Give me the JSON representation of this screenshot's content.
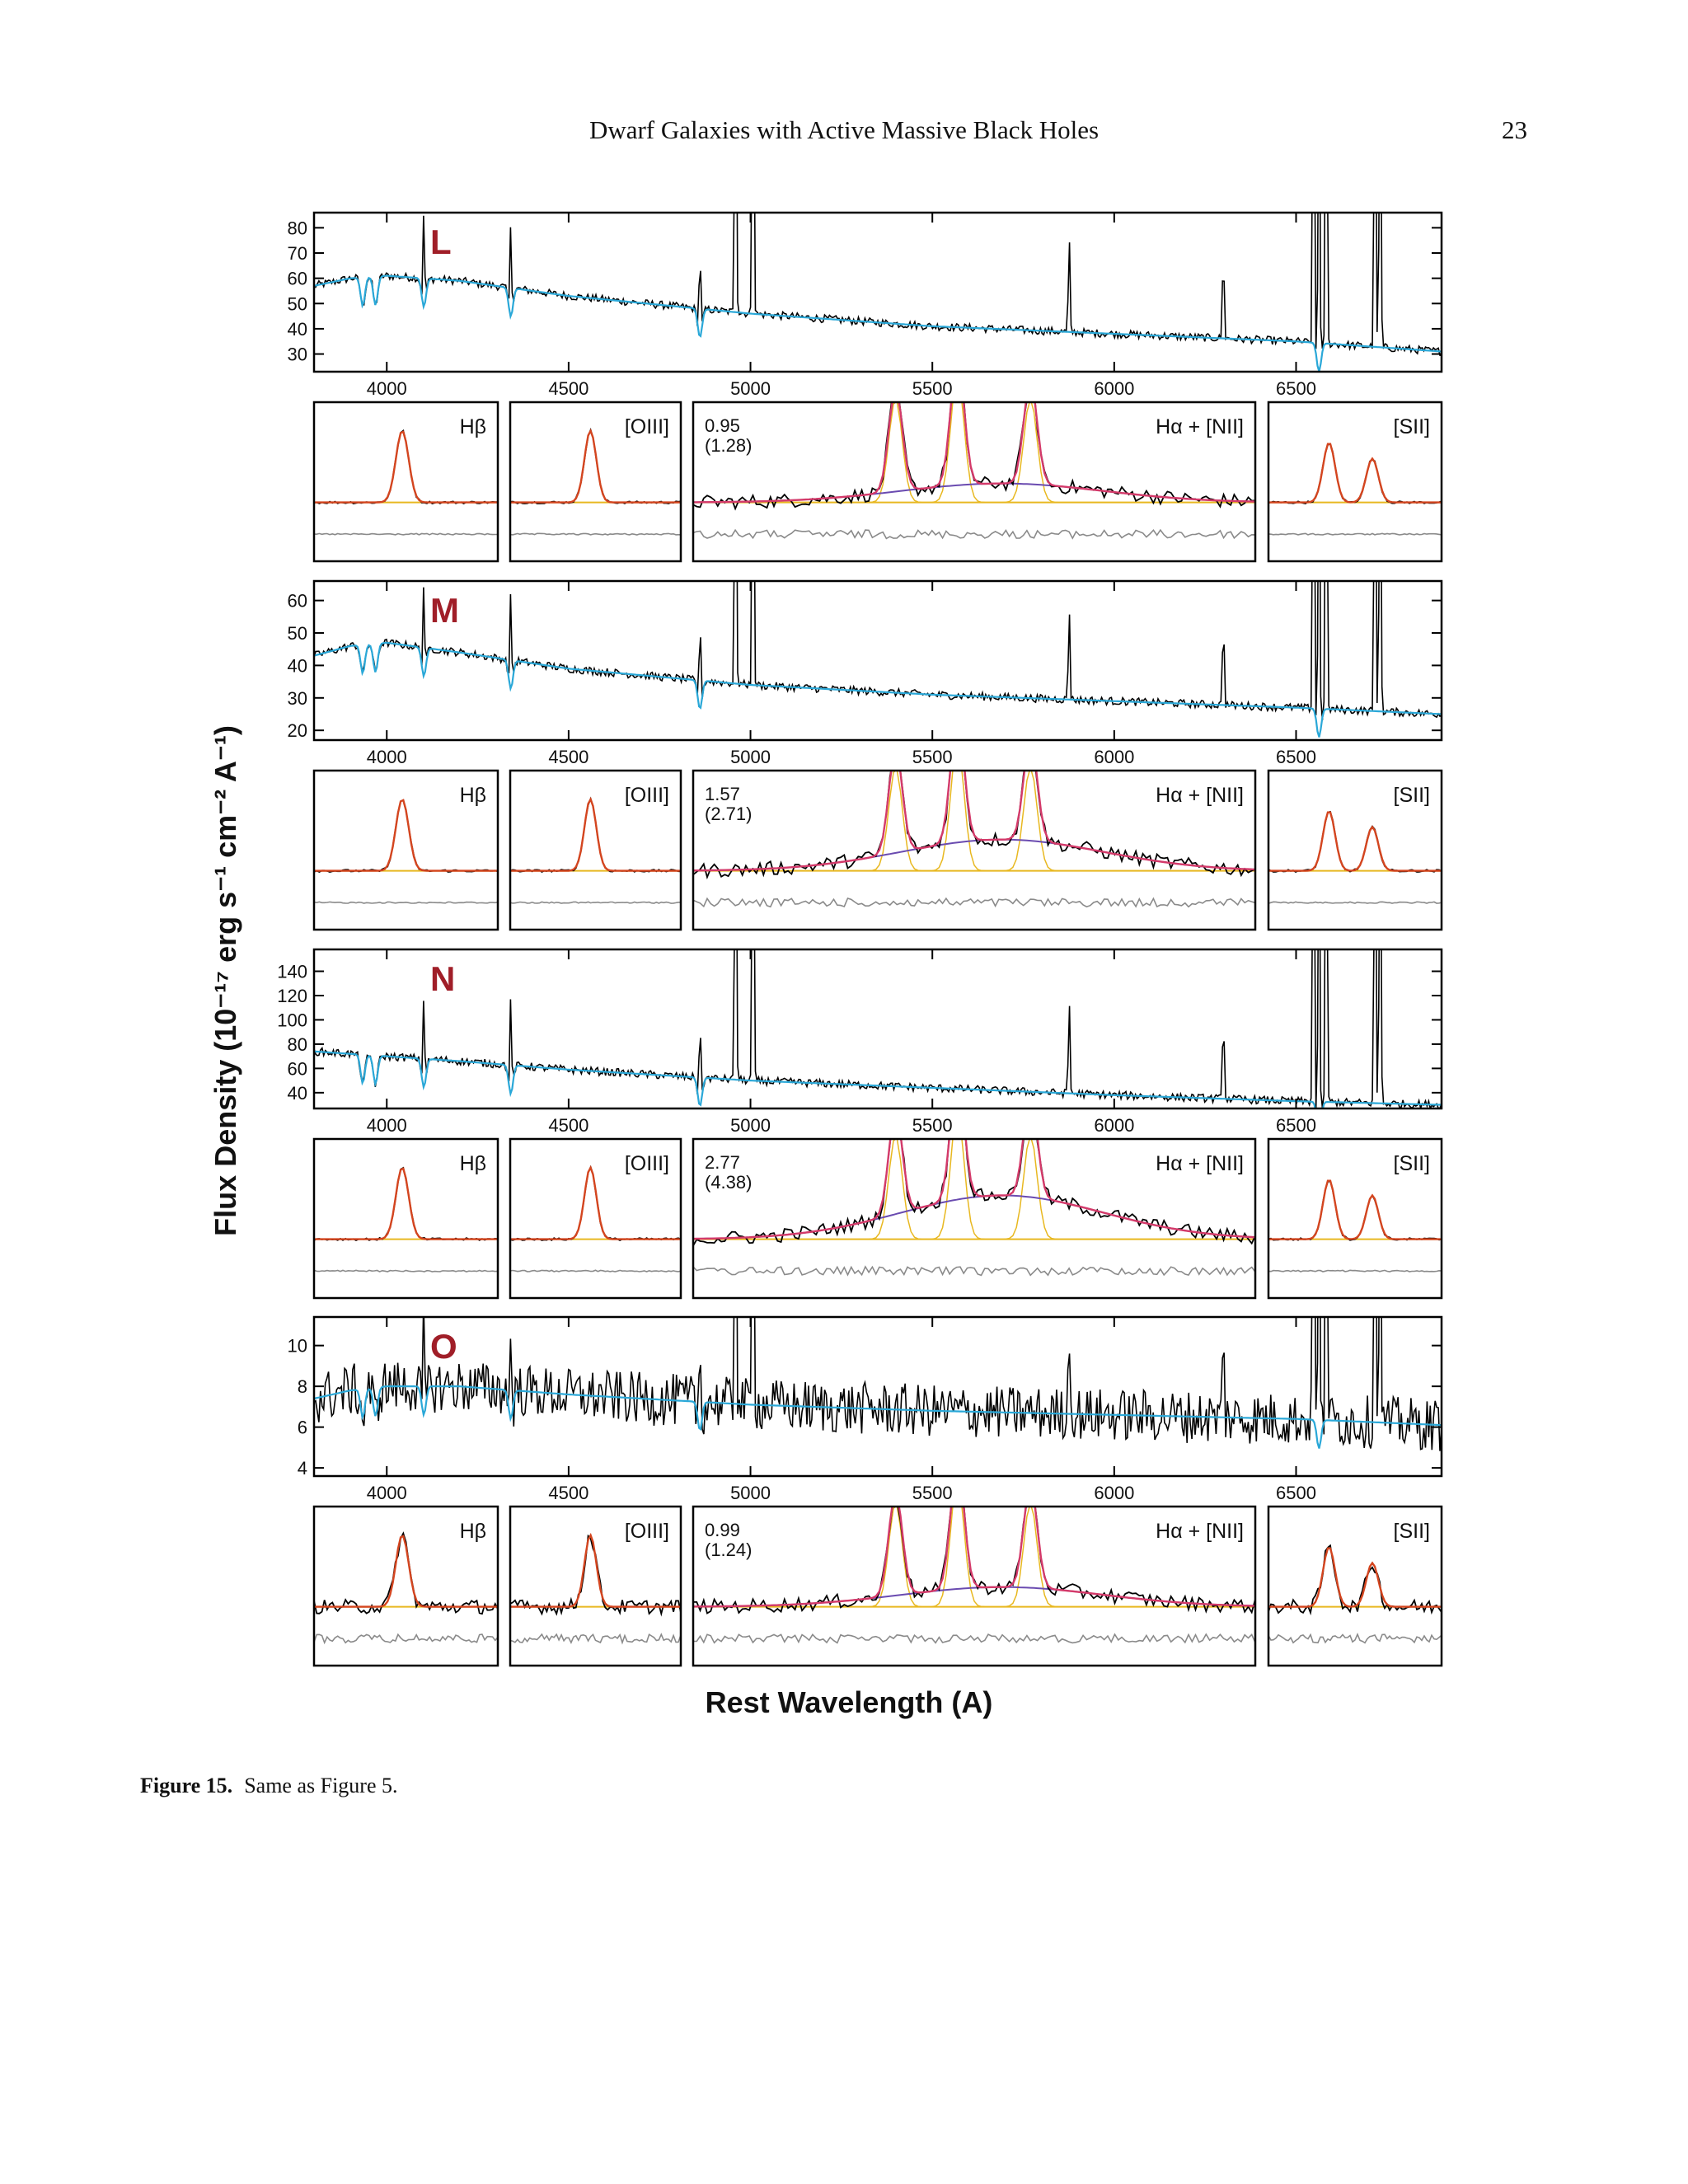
{
  "header": {
    "running_title": "Dwarf Galaxies with Active Massive Black Holes",
    "page_number": "23"
  },
  "figure": {
    "y_axis_label": "Flux Density (10⁻¹⁷ erg s⁻¹ cm⁻² A⁻¹)",
    "x_axis_label": "Rest Wavelength (A)",
    "x_ticks": [
      "4000",
      "4500",
      "5000",
      "5500",
      "6000",
      "6500"
    ],
    "inset_labels": {
      "hbeta": "Hβ",
      "oiii": "[OIII]",
      "halpha_nii": "Hα + [NII]",
      "sii": "[SII]"
    },
    "colors": {
      "data": "#000000",
      "model_continuum": "#2aa8d8",
      "fit_total": "#d4451f",
      "fit_component": "#e8b820",
      "broad_component": "#6a4bb0",
      "combined_fit": "#d43a6a",
      "residual": "#8a8a8a",
      "galaxy_label": "#a01e28"
    }
  },
  "chart_data": [
    {
      "type": "line",
      "panel": "L",
      "x_range": [
        3800,
        6900
      ],
      "ylim": [
        23,
        86
      ],
      "y_ticks": [
        "30",
        "40",
        "50",
        "60",
        "70",
        "80"
      ],
      "y_tick_values": [
        30,
        40,
        50,
        60,
        70,
        80
      ],
      "continuum": {
        "x": [
          3800,
          3900,
          4000,
          4200,
          4500,
          5000,
          5500,
          6000,
          6500,
          6900
        ],
        "y": [
          57,
          60,
          61,
          59,
          53,
          46,
          41,
          38,
          35,
          31
        ]
      },
      "broad_amplitude": 0.95,
      "broad_amplitude_alt": "(1.28)",
      "broad_label": "0.95"
    },
    {
      "type": "line",
      "panel": "M",
      "x_range": [
        3800,
        6900
      ],
      "ylim": [
        17,
        66
      ],
      "y_ticks": [
        "20",
        "30",
        "40",
        "50",
        "60"
      ],
      "y_tick_values": [
        20,
        30,
        40,
        50,
        60
      ],
      "continuum": {
        "x": [
          3800,
          3900,
          4000,
          4200,
          4500,
          5000,
          5500,
          6000,
          6500,
          6900
        ],
        "y": [
          43,
          46,
          47,
          44,
          39,
          34,
          31,
          29,
          27,
          25
        ]
      },
      "broad_amplitude": 1.57,
      "broad_amplitude_alt": "(2.71)",
      "broad_label": "1.57"
    },
    {
      "type": "line",
      "panel": "N",
      "x_range": [
        3800,
        6900
      ],
      "ylim": [
        27,
        158
      ],
      "y_ticks": [
        "40",
        "60",
        "80",
        "100",
        "120",
        "140"
      ],
      "y_tick_values": [
        40,
        60,
        80,
        100,
        120,
        140
      ],
      "continuum": {
        "x": [
          3800,
          3900,
          4000,
          4200,
          4500,
          5000,
          5500,
          6000,
          6500,
          6900
        ],
        "y": [
          74,
          72,
          70,
          66,
          59,
          50,
          44,
          38,
          33,
          30
        ]
      },
      "broad_amplitude": 2.77,
      "broad_amplitude_alt": "(4.38)",
      "broad_label": "2.77"
    },
    {
      "type": "line",
      "panel": "O",
      "x_range": [
        3800,
        6900
      ],
      "ylim": [
        3.6,
        11.4
      ],
      "y_ticks": [
        "4",
        "6",
        "8",
        "10"
      ],
      "y_tick_values": [
        4,
        6,
        8,
        10
      ],
      "continuum": {
        "x": [
          3800,
          3900,
          4000,
          4200,
          4500,
          5000,
          5500,
          6000,
          6500,
          6900
        ],
        "y": [
          7.4,
          7.8,
          8.0,
          8.0,
          7.6,
          7.1,
          6.8,
          6.6,
          6.4,
          6.1
        ]
      },
      "broad_amplitude": 0.99,
      "broad_amplitude_alt": "(1.24)",
      "broad_label": "0.99"
    }
  ],
  "caption": {
    "label": "Figure 15.",
    "text": "Same as Figure 5."
  }
}
